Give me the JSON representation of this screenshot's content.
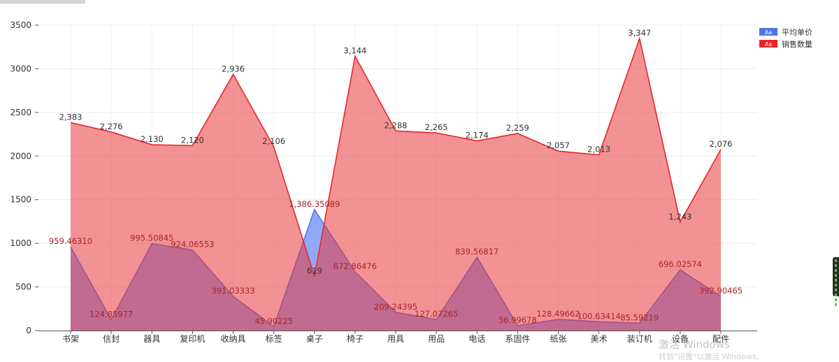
{
  "chart_data": {
    "type": "area",
    "categories": [
      "书架",
      "信封",
      "器具",
      "复印机",
      "收纳具",
      "标签",
      "桌子",
      "椅子",
      "用具",
      "用品",
      "电话",
      "系固件",
      "纸张",
      "美术",
      "装订机",
      "设备",
      "配件"
    ],
    "ylim": [
      0,
      3500
    ],
    "yticks": [
      0,
      500,
      1000,
      1500,
      2000,
      2500,
      3000,
      3500
    ],
    "grid": true,
    "legend_position": "top-right",
    "series": [
      {
        "name": "平均单价",
        "color": "#4d74f0",
        "values": [
          959.4631,
          124.85977,
          995.50845,
          924.06553,
          391.03333,
          45.90225,
          1386.35089,
          672.86476,
          209.24395,
          127.07265,
          839.56817,
          56.99678,
          128.49662,
          100.63414,
          85.59219,
          696.02574,
          392.90465
        ],
        "labels": [
          "959.46310",
          "124.85977",
          "995.50845",
          "924.06553",
          "391.03333",
          "45.90225",
          "1,386.35089",
          "672.86476",
          "209.24395",
          "127.07265",
          "839.56817",
          "56.99678",
          "128.49662",
          "100.63414",
          "85.59219",
          "696.02574",
          "392.90465"
        ]
      },
      {
        "name": "销售数量",
        "color": "#e8262a",
        "values": [
          2383,
          2276,
          2130,
          2120,
          2936,
          2106,
          619,
          3144,
          2288,
          2265,
          2174,
          2259,
          2057,
          2013,
          3347,
          1243,
          2076
        ],
        "labels": [
          "2,383",
          "2,276",
          "2,130",
          "2,120",
          "2,936",
          "2,106",
          "619",
          "3,144",
          "2,288",
          "2,265",
          "2,174",
          "2,259",
          "2,057",
          "2,013",
          "3,347",
          "1,243",
          "2,076"
        ]
      }
    ],
    "legend_marker_text": "Aa"
  },
  "overlay": {
    "watermark": "激活 Windows",
    "watermark_sub": "转到\"设置\"以激活 Windows。"
  }
}
